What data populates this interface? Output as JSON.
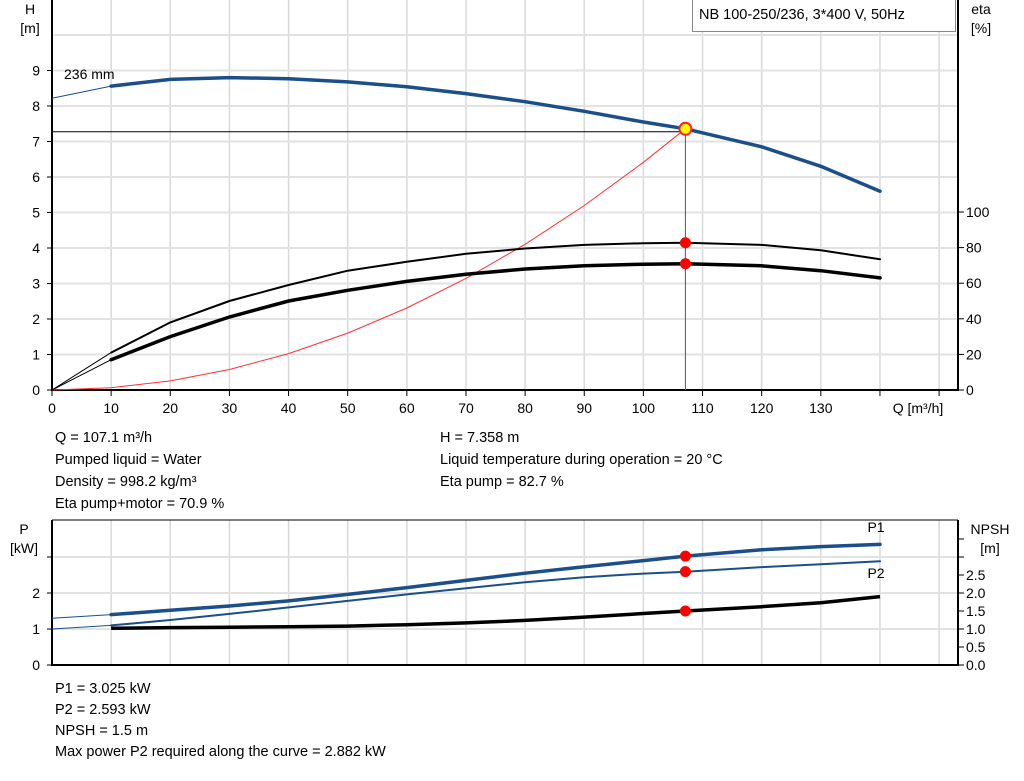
{
  "chart_data": [
    {
      "type": "line",
      "title": "NB 100-250/236, 3*400 V, 50Hz",
      "xlabel": "Q [m³/h]",
      "ylabel": "H\n[m]",
      "ylabel_lines": [
        "H",
        "[m]"
      ],
      "y2label_lines": [
        "eta",
        "[%]"
      ],
      "xlim": [
        0,
        153
      ],
      "ylim": [
        0,
        11
      ],
      "y2lim": [
        0,
        100
      ],
      "xticks": [
        0,
        10,
        20,
        30,
        40,
        50,
        60,
        70,
        80,
        90,
        100,
        110,
        120,
        130
      ],
      "yticks": [
        0,
        1,
        2,
        3,
        4,
        5,
        6,
        7,
        8,
        9
      ],
      "y2ticks": [
        0,
        20,
        40,
        60,
        80,
        100
      ],
      "grid": true,
      "curve_label": "236 mm",
      "series": [
        {
          "key": "H",
          "axis": "left",
          "color": "#1b4f8a",
          "x": [
            0,
            10,
            20,
            30,
            40,
            50,
            60,
            70,
            80,
            90,
            100,
            107.1,
            120,
            130,
            140
          ],
          "y": [
            8.22,
            8.56,
            8.75,
            8.8,
            8.77,
            8.68,
            8.54,
            8.35,
            8.12,
            7.85,
            7.55,
            7.358,
            6.85,
            6.3,
            5.6
          ]
        },
        {
          "key": "eta_pump",
          "axis": "right",
          "color": "#000000",
          "x": [
            0,
            10,
            20,
            30,
            40,
            50,
            60,
            70,
            80,
            90,
            100,
            107.1,
            120,
            130,
            140
          ],
          "y": [
            0,
            21,
            38,
            50,
            59,
            67,
            72,
            76.5,
            79.5,
            81.5,
            82.5,
            82.7,
            81.5,
            78.5,
            73.5
          ]
        },
        {
          "key": "eta_pump_motor",
          "axis": "right",
          "color": "#000000",
          "x": [
            0,
            10,
            20,
            30,
            40,
            50,
            60,
            70,
            80,
            90,
            100,
            107.1,
            120,
            130,
            140
          ],
          "y": [
            0,
            17,
            30,
            41,
            50,
            56,
            61,
            65,
            68,
            69.8,
            70.7,
            70.9,
            69.8,
            67,
            63
          ]
        },
        {
          "key": "system",
          "axis": "left",
          "color": "#ff3030",
          "x": [
            0,
            10,
            20,
            30,
            40,
            50,
            60,
            70,
            80,
            90,
            100,
            107.1
          ],
          "y": [
            0,
            0.064,
            0.257,
            0.577,
            1.026,
            1.604,
            2.309,
            3.143,
            4.105,
            5.196,
            6.415,
            7.358
          ]
        }
      ],
      "operating_point": {
        "Q": 107.1,
        "H": 7.358,
        "eta_pump": 82.7,
        "eta_pump_motor": 70.9
      }
    },
    {
      "type": "line",
      "ylabel_lines": [
        "P",
        "[kW]"
      ],
      "y2label_lines": [
        "NPSH",
        "[m]"
      ],
      "xlim": [
        0,
        153
      ],
      "ylim": [
        0,
        4
      ],
      "y2lim": [
        0,
        4
      ],
      "yticks": [
        0,
        1,
        2,
        3
      ],
      "ytick_labels": [
        "0",
        "1",
        "2",
        ""
      ],
      "y2ticks": [
        0,
        0.5,
        1,
        1.5,
        2,
        2.5,
        3,
        3.5
      ],
      "y2tick_labels": [
        "0.0",
        "0.5",
        "1.0",
        "1.5",
        "2.0",
        "2.5",
        "",
        ""
      ],
      "grid": true,
      "series": [
        {
          "key": "P1",
          "name": "P1",
          "axis": "left",
          "color": "#1b4f8a",
          "x": [
            0,
            10,
            20,
            30,
            40,
            50,
            60,
            70,
            80,
            90,
            100,
            107.1,
            120,
            130,
            140
          ],
          "y": [
            1.3,
            1.4,
            1.52,
            1.64,
            1.78,
            1.96,
            2.15,
            2.35,
            2.55,
            2.73,
            2.9,
            3.025,
            3.2,
            3.29,
            3.35
          ]
        },
        {
          "key": "P2",
          "name": "P2",
          "axis": "left",
          "color": "#1b4f8a",
          "x": [
            0,
            10,
            20,
            30,
            40,
            50,
            60,
            70,
            80,
            90,
            100,
            107.1,
            120,
            130,
            140
          ],
          "y": [
            1.0,
            1.1,
            1.25,
            1.42,
            1.6,
            1.78,
            1.96,
            2.13,
            2.3,
            2.44,
            2.54,
            2.593,
            2.72,
            2.8,
            2.88
          ]
        },
        {
          "key": "NPSH",
          "axis": "right",
          "color": "#000000",
          "x": [
            10,
            20,
            30,
            40,
            50,
            60,
            70,
            80,
            90,
            100,
            107.1,
            120,
            130,
            140
          ],
          "y": [
            1.02,
            1.04,
            1.05,
            1.06,
            1.08,
            1.12,
            1.17,
            1.24,
            1.33,
            1.43,
            1.5,
            1.62,
            1.73,
            1.9
          ]
        }
      ],
      "operating_point": {
        "Q": 107.1,
        "P1": 3.025,
        "P2": 2.593,
        "NPSH": 1.5
      }
    }
  ],
  "info_top": {
    "q": "Q = 107.1 m³/h",
    "liquid": "Pumped liquid = Water",
    "density": "Density = 998.2 kg/m³",
    "eta_pm": "Eta pump+motor = 70.9 %",
    "h": "H = 7.358 m",
    "temp": "Liquid temperature during operation = 20 °C",
    "eta_p": "Eta pump = 82.7 %"
  },
  "info_bottom": {
    "p1": "P1 = 3.025 kW",
    "p2": "P2 = 2.593 kW",
    "npsh": "NPSH = 1.5 m",
    "maxp2": "Max power P2 required along the curve = 2.882 kW"
  }
}
